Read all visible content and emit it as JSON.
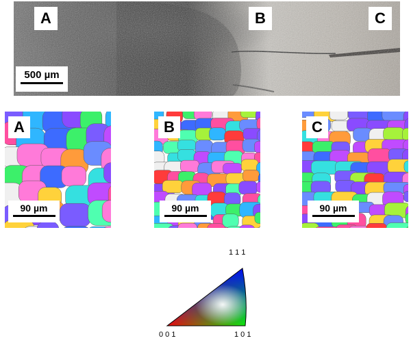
{
  "micrograph": {
    "labels": {
      "a": "A",
      "b": "B",
      "c": "C"
    },
    "scale_bar": "500 µm"
  },
  "ebsd_maps": [
    {
      "label": "A",
      "scale_bar": "90 µm"
    },
    {
      "label": "B",
      "scale_bar": "90 µm"
    },
    {
      "label": "C",
      "scale_bar": "90 µm"
    }
  ],
  "ipf_legend": {
    "top": "1 1 1",
    "bottom_left": "0 0 1",
    "bottom_right": "1 0 1"
  }
}
